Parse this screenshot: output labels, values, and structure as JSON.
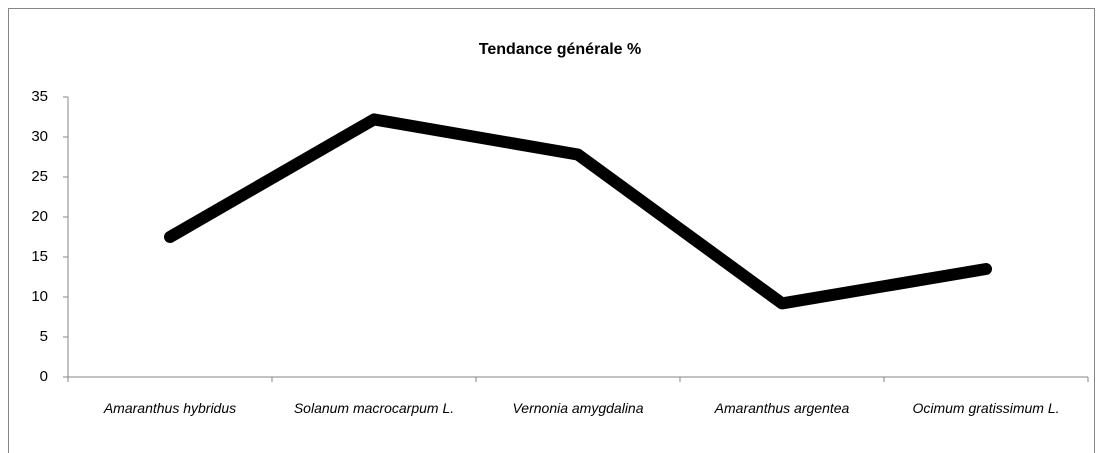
{
  "chart_data": {
    "type": "line",
    "title": "Tendance générale %",
    "categories": [
      "Amaranthus hybridus",
      "Solanum macrocarpum L.",
      "Vernonia amygdalina",
      "Amaranthus argentea",
      "Ocimum gratissimum L."
    ],
    "series": [
      {
        "name": "Tendance générale %",
        "color": "#000000",
        "values": [
          17.5,
          32.2,
          27.8,
          9.2,
          13.5
        ]
      }
    ],
    "ylim": [
      0,
      35
    ],
    "yticks": [
      0,
      5,
      10,
      15,
      20,
      25,
      30,
      35
    ],
    "grid": false
  }
}
